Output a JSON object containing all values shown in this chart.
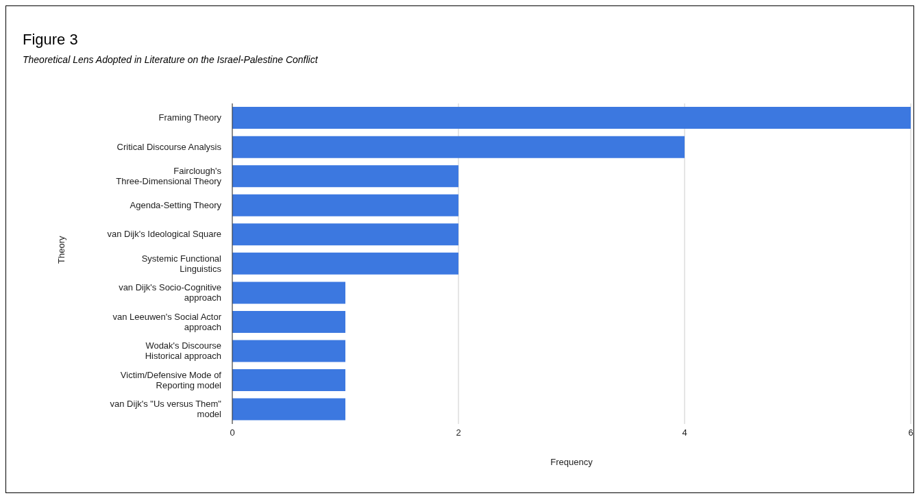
{
  "chart_data": {
    "type": "bar",
    "orientation": "horizontal",
    "title": "Figure 3",
    "subtitle": "Theoretical Lens Adopted in Literature on the Israel-Palestine Conflict",
    "xlabel": "Frequency",
    "ylabel": "Theory",
    "categories": [
      "Framing Theory",
      "Critical Discourse Analysis",
      "Fairclough's\nThree-Dimensional Theory",
      "Agenda-Setting Theory",
      "van Dijk's Ideological Square",
      "Systemic Functional\nLinguistics",
      "van Dijk's Socio-Cognitive\napproach",
      "van Leeuwen's Social Actor\napproach",
      "Wodak's Discourse\nHistorical approach",
      "Victim/Defensive Mode of\nReporting model",
      "van Dijk's \"Us versus Them\"\nmodel"
    ],
    "values": [
      6,
      4,
      2,
      2,
      2,
      2,
      1,
      1,
      1,
      1,
      1
    ],
    "color": "#3c78e0",
    "xlim": [
      0,
      6
    ],
    "xticks": [
      0,
      2,
      4,
      6
    ],
    "grid": "x",
    "legend": false
  }
}
